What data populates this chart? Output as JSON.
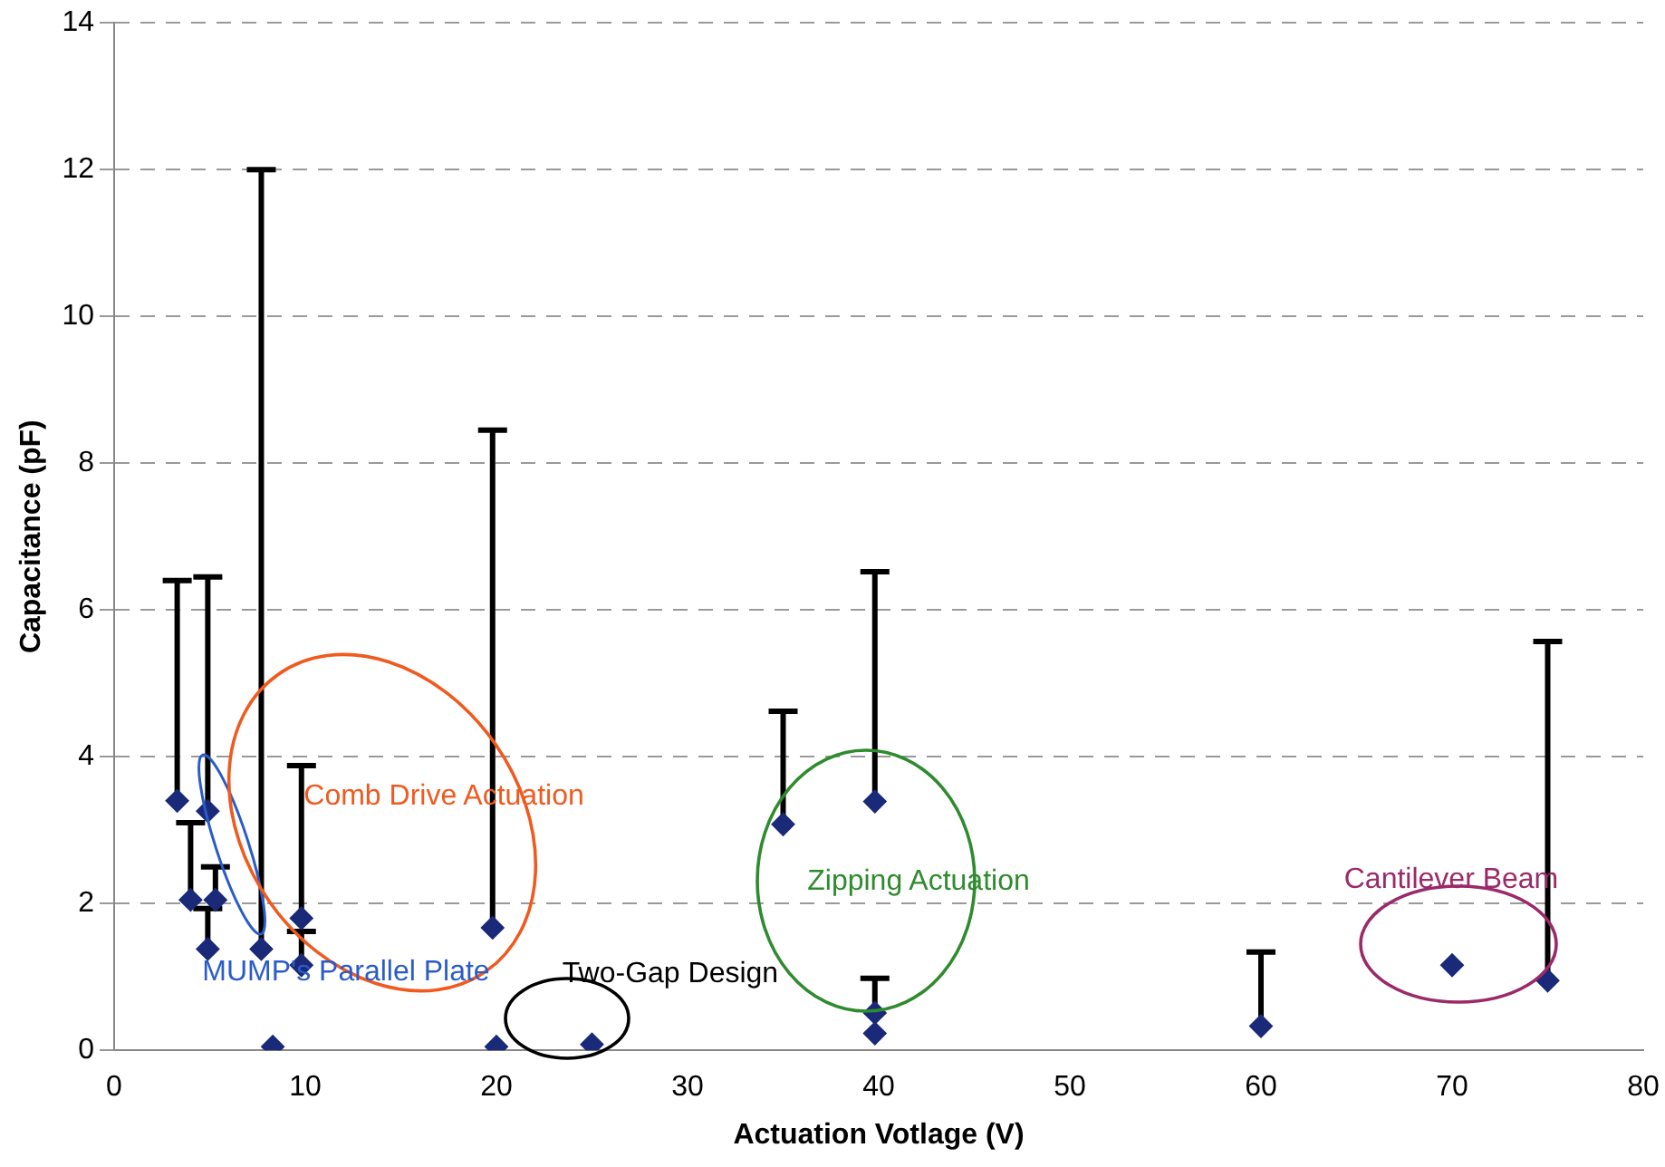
{
  "chart_data": {
    "type": "scatter",
    "xlabel": "Actuation Votlage (V)",
    "ylabel": "Capacitance (pF)",
    "x": [
      3.3,
      4,
      4.9,
      5.3,
      4.9,
      7.7,
      8.3,
      9.8,
      9.8,
      19.8,
      20,
      25,
      35,
      39.8,
      39.8,
      39.8,
      60,
      70,
      75
    ],
    "series": [
      {
        "color": "#1a2a78",
        "values": [
          3.4,
          2.05,
          3.26,
          2.05,
          1.38,
          1.38,
          0.05,
          1.8,
          1.16,
          1.67,
          0.05,
          0.08,
          3.08,
          3.39,
          0.51,
          0.23,
          0.33,
          1.16,
          0.95
        ],
        "errors": [
          [
            3.4,
            6.4
          ],
          [
            2.05,
            3.1
          ],
          [
            3.26,
            6.45
          ],
          [
            2.05,
            2.5
          ],
          [
            1.38,
            1.93
          ],
          [
            1.38,
            12
          ],
          null,
          [
            1.8,
            3.88
          ],
          [
            1.16,
            1.62
          ],
          [
            1.67,
            8.45
          ],
          null,
          null,
          [
            3.08,
            4.62
          ],
          [
            3.39,
            6.52
          ],
          [
            0.51,
            0.98
          ],
          null,
          [
            0.33,
            1.34
          ],
          null,
          [
            0.95,
            5.57
          ]
        ]
      }
    ],
    "xlim": [
      0,
      80
    ],
    "xticks": [
      0,
      10,
      20,
      30,
      40,
      50,
      60,
      70,
      80
    ],
    "ylim": [
      0,
      14
    ],
    "yticks": [
      0,
      2,
      4,
      6,
      8,
      10,
      12,
      14
    ],
    "grid": "y",
    "marker": "diamond",
    "legend": false,
    "annotations": [
      "Comb Drive Actuation",
      "MUMP's Parallel Plate",
      "Two-Gap Design",
      "Zipping Actuation",
      "Cantilever Beam"
    ]
  }
}
